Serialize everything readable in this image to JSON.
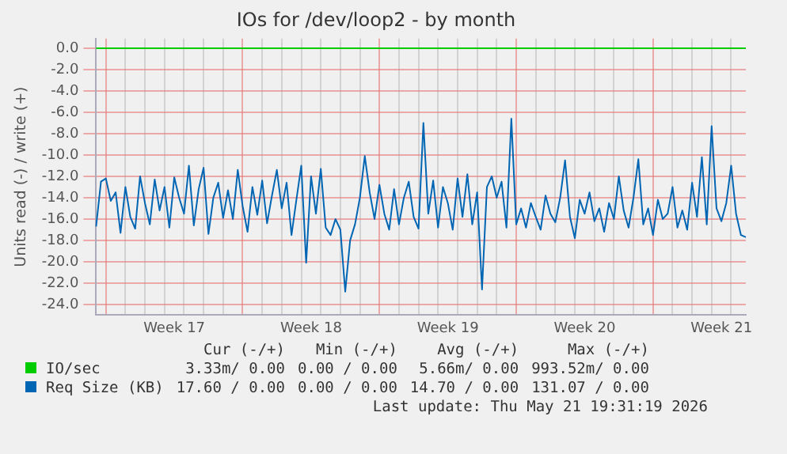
{
  "chart_data": {
    "type": "line",
    "title": "IOs for /dev/loop2 - by month",
    "ylabel": "Units read (-) / write (+)",
    "categories": [
      null,
      null,
      null,
      null,
      null,
      null,
      null,
      null,
      null,
      null,
      null,
      null,
      null,
      null,
      null,
      null,
      "Week 17",
      null,
      null,
      null,
      null,
      null,
      null,
      null,
      null,
      null,
      null,
      null,
      null,
      null,
      null,
      null,
      null,
      null,
      null,
      null,
      null,
      null,
      null,
      null,
      null,
      null,
      null,
      null,
      "Week 18",
      null,
      null,
      null,
      null,
      null,
      null,
      null,
      null,
      null,
      null,
      null,
      null,
      null,
      null,
      null,
      null,
      null,
      null,
      null,
      null,
      null,
      null,
      null,
      null,
      null,
      null,
      null,
      "Week 19",
      null,
      null,
      null,
      null,
      null,
      null,
      null,
      null,
      null,
      null,
      null,
      null,
      null,
      null,
      null,
      null,
      null,
      null,
      null,
      null,
      null,
      null,
      null,
      null,
      null,
      null,
      null,
      "Week 20",
      null,
      null,
      null,
      null,
      null,
      null,
      null,
      null,
      null,
      null,
      null,
      null,
      null,
      null,
      null,
      null,
      null,
      null,
      null,
      null,
      null,
      null,
      null,
      null,
      null,
      null,
      null,
      "Week 21",
      null,
      null,
      null,
      null,
      null
    ],
    "ylim": [
      -25,
      0.9
    ],
    "yticks": [
      {
        "value": 0,
        "label": "0.0"
      },
      {
        "value": -2,
        "label": "-2.0"
      },
      {
        "value": -4,
        "label": "-4.0"
      },
      {
        "value": -6,
        "label": "-6.0"
      },
      {
        "value": -8,
        "label": "-8.0"
      },
      {
        "value": -10,
        "label": "-10.0"
      },
      {
        "value": -12,
        "label": "-12.0"
      },
      {
        "value": -14,
        "label": "-14.0"
      },
      {
        "value": -16,
        "label": "-16.0"
      },
      {
        "value": -18,
        "label": "-18.0"
      },
      {
        "value": -20,
        "label": "-20.0"
      },
      {
        "value": -22,
        "label": "-22.0"
      },
      {
        "value": -24,
        "label": "-24.0"
      }
    ],
    "grid": true,
    "legend": "bottom",
    "marker": "none",
    "line_style": "solid",
    "series": [
      {
        "name": "IO/sec",
        "color": "#00cc00",
        "values": [
          0,
          0,
          0,
          0,
          0,
          0,
          0,
          0,
          0,
          0,
          0,
          0,
          0,
          0,
          0,
          0,
          0,
          0,
          0,
          0,
          0,
          0,
          0,
          0,
          0,
          0,
          0,
          0,
          0,
          0,
          0,
          0,
          0,
          0,
          0,
          0,
          0,
          0,
          0,
          0,
          0,
          0,
          0,
          0,
          0,
          0,
          0,
          0,
          0,
          0,
          0,
          0,
          0,
          0,
          0,
          0,
          0,
          0,
          0,
          0,
          0,
          0,
          0,
          0,
          0,
          0,
          0,
          0,
          0,
          0,
          0,
          0,
          0,
          0,
          0,
          0,
          0,
          0,
          0,
          0,
          0,
          0,
          0,
          0,
          0,
          0,
          0,
          0,
          0,
          0,
          0,
          0,
          0,
          0,
          0,
          0,
          0,
          0,
          0,
          0,
          0,
          0,
          0,
          0,
          0,
          0,
          0,
          0,
          0,
          0,
          0,
          0,
          0,
          0,
          0,
          0,
          0,
          0,
          0,
          0,
          0,
          0,
          0,
          0,
          0,
          0,
          0,
          0,
          0,
          0,
          0,
          0,
          0,
          0
        ]
      },
      {
        "name": "Req Size (KB)",
        "color": "#0066b3",
        "values": [
          -16.7,
          -12.5,
          -12.2,
          -14.3,
          -13.5,
          -17.3,
          -13.0,
          -15.8,
          -16.9,
          -12.0,
          -14.5,
          -16.5,
          -12.3,
          -15.2,
          -13.0,
          -16.8,
          -12.1,
          -14.0,
          -15.5,
          -11.0,
          -16.6,
          -13.2,
          -11.2,
          -17.4,
          -14.0,
          -12.6,
          -15.9,
          -13.3,
          -16.0,
          -11.4,
          -14.8,
          -17.2,
          -13.0,
          -15.6,
          -12.4,
          -16.4,
          -13.8,
          -11.4,
          -15.0,
          -12.6,
          -17.5,
          -14.2,
          -11.0,
          -20.1,
          -12.0,
          -15.5,
          -11.3,
          -16.8,
          -17.5,
          -16.0,
          -17.0,
          -22.8,
          -18.0,
          -16.5,
          -14.0,
          -10.1,
          -13.5,
          -16.0,
          -12.8,
          -15.5,
          -17.0,
          -13.2,
          -16.5,
          -14.0,
          -12.5,
          -15.8,
          -16.9,
          -7.0,
          -15.5,
          -12.4,
          -16.8,
          -13.0,
          -14.5,
          -17.0,
          -12.2,
          -15.8,
          -11.8,
          -16.5,
          -13.5,
          -22.6,
          -13.0,
          -12.0,
          -14.0,
          -12.5,
          -16.8,
          -6.6,
          -16.5,
          -15.0,
          -16.8,
          -14.5,
          -15.8,
          -17.0,
          -13.8,
          -15.5,
          -16.3,
          -14.0,
          -10.5,
          -15.8,
          -17.8,
          -14.2,
          -15.5,
          -13.5,
          -16.2,
          -15.0,
          -17.2,
          -14.5,
          -16.0,
          -12.0,
          -15.2,
          -16.8,
          -14.0,
          -10.4,
          -16.5,
          -15.0,
          -17.5,
          -14.2,
          -16.0,
          -15.5,
          -13.0,
          -16.8,
          -15.2,
          -17.0,
          -12.6,
          -15.8,
          -10.2,
          -16.5,
          -7.3,
          -15.0,
          -16.2,
          -14.5,
          -11.0,
          -15.5,
          -17.5,
          -17.7
        ]
      }
    ],
    "annotations": [
      "Cur (-/+)",
      "Min (-/+)",
      "Avg (-/+)",
      "Max (-/+)",
      "3.33m/ 0.00",
      "0.00 / 0.00",
      "5.66m/ 0.00",
      "993.52m/ 0.00",
      "17.60 / 0.00",
      "0.00 / 0.00",
      "14.70 / 0.00",
      "131.07 / 0.00",
      "Last update: Thu May 21 19:31:19 2026"
    ]
  }
}
